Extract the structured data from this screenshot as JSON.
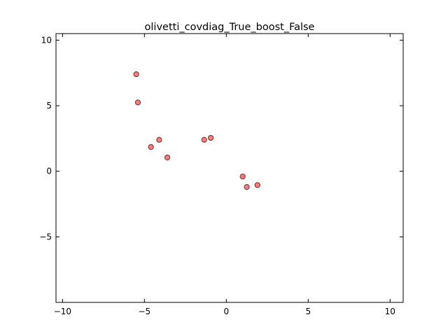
{
  "chart_data": {
    "type": "scatter",
    "title": "olivetti_covdiag_True_boost_False",
    "xlabel": "",
    "ylabel": "",
    "xlim": [
      -10.4,
      10.8
    ],
    "ylim": [
      -10.0,
      10.5
    ],
    "xticks": [
      -10,
      -5,
      0,
      5,
      10
    ],
    "yticks": [
      10,
      5,
      0,
      -5
    ],
    "xtick_labels": [
      "−10",
      "−5",
      "0",
      "5",
      "10"
    ],
    "ytick_labels": [
      "10",
      "5",
      "0",
      "−5"
    ],
    "grid": false,
    "marker_color": "#f08080",
    "marker_edge_color": "#7a2a2a",
    "points": [
      {
        "x": -5.5,
        "y": 7.4
      },
      {
        "x": -5.4,
        "y": 5.25
      },
      {
        "x": -4.1,
        "y": 2.4
      },
      {
        "x": -4.6,
        "y": 1.85
      },
      {
        "x": -3.6,
        "y": 1.05
      },
      {
        "x": -1.35,
        "y": 2.4
      },
      {
        "x": -0.95,
        "y": 2.55
      },
      {
        "x": 1.0,
        "y": -0.4
      },
      {
        "x": 1.25,
        "y": -1.2
      },
      {
        "x": 1.9,
        "y": -1.05
      }
    ]
  }
}
